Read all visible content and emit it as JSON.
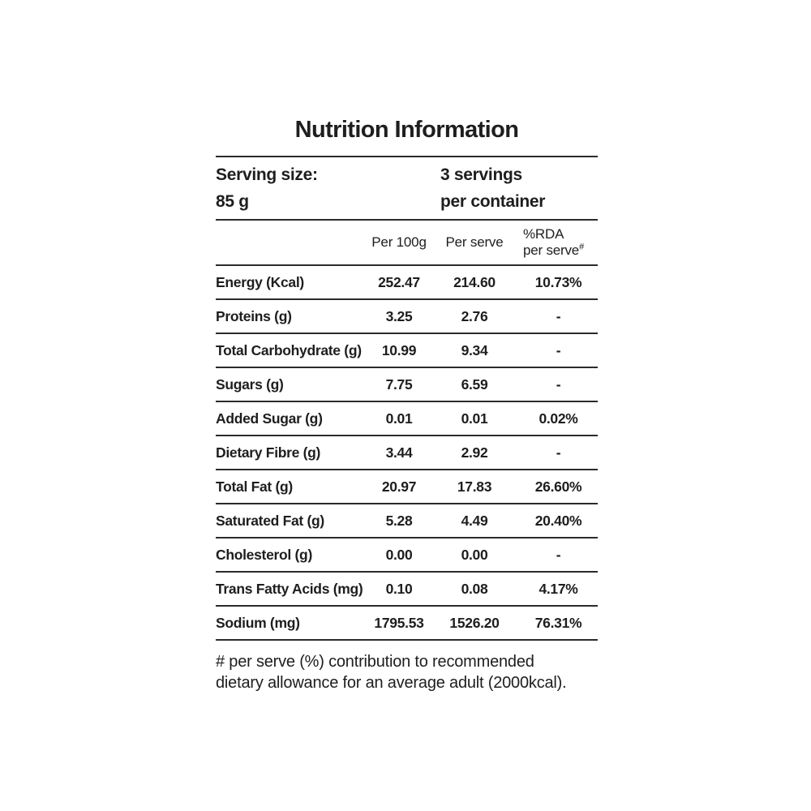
{
  "title": "Nutrition Information",
  "serving": {
    "size_label": "Serving size:",
    "size_value": "85 g",
    "count_line1": "3 servings",
    "count_line2": "per container"
  },
  "table": {
    "columns": {
      "per_100g": "Per 100g",
      "per_serve": "Per serve",
      "rda_line1": "%RDA",
      "rda_line2": "per serve",
      "rda_sup": "#"
    },
    "rows": [
      {
        "label": "Energy (Kcal)",
        "per_100g": "252.47",
        "per_serve": "214.60",
        "rda": "10.73%"
      },
      {
        "label": "Proteins (g)",
        "per_100g": "3.25",
        "per_serve": "2.76",
        "rda": "-"
      },
      {
        "label": "Total Carbohydrate (g)",
        "per_100g": "10.99",
        "per_serve": "9.34",
        "rda": "-"
      },
      {
        "label": "Sugars (g)",
        "per_100g": "7.75",
        "per_serve": "6.59",
        "rda": "-"
      },
      {
        "label": "Added Sugar (g)",
        "per_100g": "0.01",
        "per_serve": "0.01",
        "rda": "0.02%"
      },
      {
        "label": "Dietary Fibre (g)",
        "per_100g": "3.44",
        "per_serve": "2.92",
        "rda": "-"
      },
      {
        "label": "Total Fat (g)",
        "per_100g": "20.97",
        "per_serve": "17.83",
        "rda": "26.60%"
      },
      {
        "label": "Saturated Fat (g)",
        "per_100g": "5.28",
        "per_serve": "4.49",
        "rda": "20.40%"
      },
      {
        "label": "Cholesterol (g)",
        "per_100g": "0.00",
        "per_serve": "0.00",
        "rda": "-"
      },
      {
        "label": "Trans Fatty Acids (mg)",
        "per_100g": "0.10",
        "per_serve": "0.08",
        "rda": "4.17%"
      },
      {
        "label": "Sodium (mg)",
        "per_100g": "1795.53",
        "per_serve": "1526.20",
        "rda": "76.31%"
      }
    ]
  },
  "footnote": {
    "line1": "# per serve (%) contribution to recommended",
    "line2": "dietary allowance for an average adult (2000kcal)."
  },
  "colors": {
    "text": "#1e1e1e",
    "rule": "#2b2b2b",
    "background": "#ffffff"
  }
}
